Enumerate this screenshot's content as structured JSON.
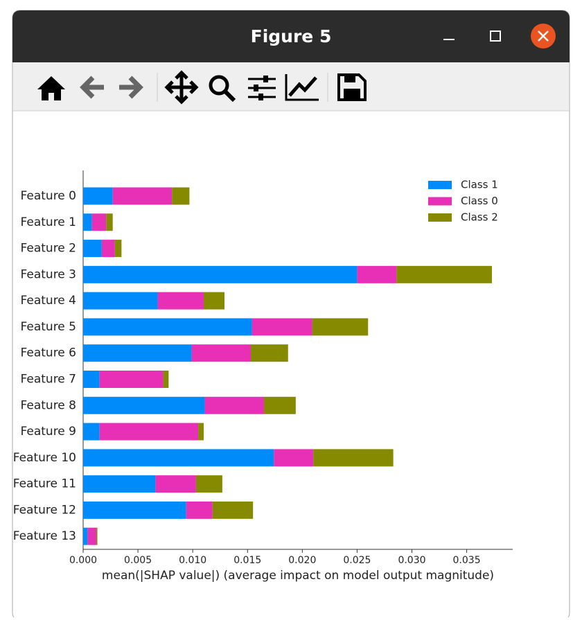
{
  "window": {
    "title": "Figure 5"
  },
  "chart_data": {
    "type": "stacked-barh",
    "xlabel": "mean(|SHAP value|) (average impact on model output magnitude)",
    "categories": [
      "Feature 0",
      "Feature 1",
      "Feature 2",
      "Feature 3",
      "Feature 4",
      "Feature 5",
      "Feature 6",
      "Feature 7",
      "Feature 8",
      "Feature 9",
      "Feature 10",
      "Feature 11",
      "Feature 12",
      "Feature 13"
    ],
    "series": [
      {
        "name": "Class 1",
        "color": "#008bfb",
        "values": [
          0.0027,
          0.0008,
          0.0017,
          0.025,
          0.0068,
          0.0154,
          0.0099,
          0.0015,
          0.0111,
          0.0015,
          0.0174,
          0.0066,
          0.0094,
          0.0004
        ]
      },
      {
        "name": "Class 0",
        "color": "#e830b6",
        "values": [
          0.0054,
          0.0013,
          0.0012,
          0.0036,
          0.0042,
          0.0055,
          0.0054,
          0.0058,
          0.0054,
          0.009,
          0.0036,
          0.0037,
          0.0024,
          0.0008
        ]
      },
      {
        "name": "Class 2",
        "color": "#868a00",
        "values": [
          0.0016,
          0.0006,
          0.0006,
          0.0087,
          0.0019,
          0.0051,
          0.0034,
          0.0005,
          0.0029,
          0.0005,
          0.0073,
          0.0024,
          0.0037,
          0.0001
        ]
      }
    ],
    "xlim": [
      0,
      0.0392
    ],
    "xticks": [
      {
        "value": 0,
        "label": "0.000"
      },
      {
        "value": 0.005,
        "label": "0.005"
      },
      {
        "value": 0.01,
        "label": "0.010"
      },
      {
        "value": 0.015,
        "label": "0.015"
      },
      {
        "value": 0.02,
        "label": "0.020"
      },
      {
        "value": 0.025,
        "label": "0.025"
      },
      {
        "value": 0.03,
        "label": "0.030"
      },
      {
        "value": 0.035,
        "label": "0.035"
      }
    ],
    "legend": "upper right"
  }
}
